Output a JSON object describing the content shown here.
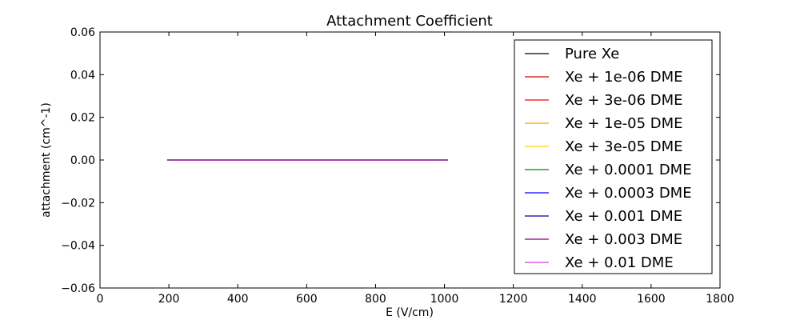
{
  "chart_data": {
    "type": "line",
    "title": "Attachment Coefficient",
    "xlabel": "E (V/cm)",
    "ylabel": "attachment (cm^-1)",
    "xlim": [
      0,
      1800
    ],
    "ylim": [
      -0.06,
      0.06
    ],
    "xticks": [
      0,
      200,
      400,
      600,
      800,
      1000,
      1200,
      1400,
      1600,
      1800
    ],
    "xtick_labels": [
      "0",
      "200",
      "400",
      "600",
      "800",
      "1000",
      "1200",
      "1400",
      "1600",
      "1800"
    ],
    "yticks": [
      -0.06,
      -0.04,
      -0.02,
      0.0,
      0.02,
      0.04,
      0.06
    ],
    "ytick_labels": [
      "−0.06",
      "−0.04",
      "−0.02",
      "0.00",
      "0.02",
      "0.04",
      "0.06"
    ],
    "grid": false,
    "legend_position": "top-right",
    "series": [
      {
        "name": "Pure Xe",
        "color": "#000000",
        "x": [
          195,
          1010
        ],
        "y": [
          0,
          0
        ]
      },
      {
        "name": "Xe + 1e-06 DME",
        "color": "#cc0000",
        "x": [
          200,
          1005
        ],
        "y": [
          0,
          0
        ]
      },
      {
        "name": "Xe + 3e-06 DME",
        "color": "#ff0000",
        "x": [
          200,
          1005
        ],
        "y": [
          0,
          0
        ]
      },
      {
        "name": "Xe + 1e-05 DME",
        "color": "#ffa500",
        "x": [
          200,
          1005
        ],
        "y": [
          0,
          0
        ]
      },
      {
        "name": "Xe + 3e-05 DME",
        "color": "#ffd700",
        "x": [
          200,
          1005
        ],
        "y": [
          0,
          0
        ]
      },
      {
        "name": "Xe + 0.0001 DME",
        "color": "#008000",
        "x": [
          200,
          1005
        ],
        "y": [
          0,
          0
        ]
      },
      {
        "name": "Xe + 0.0003 DME",
        "color": "#0000ff",
        "x": [
          200,
          1005
        ],
        "y": [
          0,
          0
        ]
      },
      {
        "name": "Xe + 0.001 DME",
        "color": "#00008b",
        "x": [
          200,
          1005
        ],
        "y": [
          0,
          0
        ]
      },
      {
        "name": "Xe + 0.003 DME",
        "color": "#800080",
        "x": [
          200,
          1005
        ],
        "y": [
          0,
          0
        ]
      },
      {
        "name": "Xe + 0.01 DME",
        "color": "#cc44dd",
        "x": [
          200,
          1005
        ],
        "y": [
          0,
          0
        ]
      }
    ]
  }
}
